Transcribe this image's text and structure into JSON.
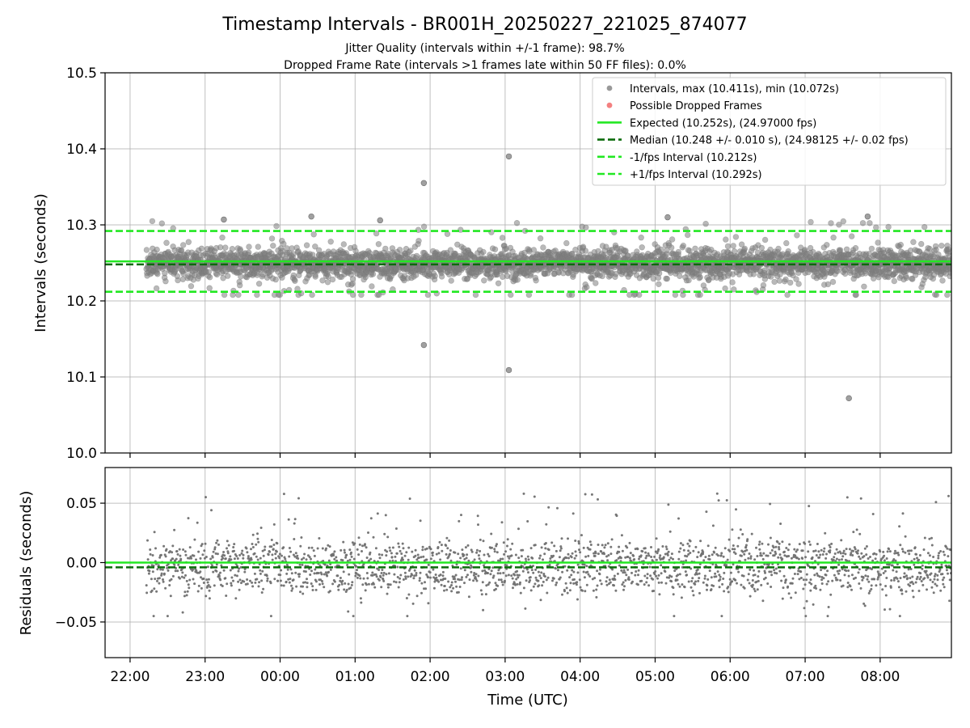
{
  "chart_data": [
    {
      "type": "scatter",
      "panel": "intervals",
      "title": "Timestamp Intervals - BR001H_20250227_221025_874077",
      "subtitle_lines": [
        "Jitter Quality (intervals within +/-1 frame): 98.7%",
        "Dropped Frame Rate (intervals >1 frames late within 50 FF files): 0.0%"
      ],
      "ylabel": "Intervals (seconds)",
      "xlabel": "",
      "xlim": [
        "2025-02-27T21:40",
        "2025-02-28T08:57"
      ],
      "ylim": [
        10.0,
        10.5
      ],
      "y_ticks": [
        10.0,
        10.1,
        10.2,
        10.3,
        10.4,
        10.5
      ],
      "y_tick_labels": [
        "10.0",
        "10.1",
        "10.2",
        "10.3",
        "10.4",
        "10.5"
      ],
      "grid": true,
      "legend_position": "top-right",
      "series": [
        {
          "name": "Intervals, max (10.411s), min (10.072s)",
          "kind": "scatter",
          "color": "#808080",
          "x_range": [
            "2025-02-27T22:13",
            "2025-02-28T08:57"
          ],
          "core_band": [
            10.225,
            10.27
          ],
          "notable_points": [
            {
              "x": "2025-02-28T01:55",
              "y": 10.355
            },
            {
              "x": "2025-02-28T03:03",
              "y": 10.39
            },
            {
              "x": "2025-02-28T01:55",
              "y": 10.142
            },
            {
              "x": "2025-02-28T03:03",
              "y": 10.109
            },
            {
              "x": "2025-02-28T07:35",
              "y": 10.072
            },
            {
              "x": "2025-02-28T07:50",
              "y": 10.311
            },
            {
              "x": "2025-02-28T00:25",
              "y": 10.311
            },
            {
              "x": "2025-02-27T23:15",
              "y": 10.307
            },
            {
              "x": "2025-02-28T01:20",
              "y": 10.306
            },
            {
              "x": "2025-02-28T05:10",
              "y": 10.31
            }
          ]
        },
        {
          "name": "Possible Dropped Frames",
          "kind": "scatter",
          "color": "#f06060",
          "points": []
        },
        {
          "name": "Expected (10.252s), (24.97000 fps)",
          "kind": "hline",
          "y": 10.252,
          "color": "#22e822",
          "style": "solid"
        },
        {
          "name": "Median (10.248 +/- 0.010 s), (24.98125 +/- 0.02 fps)",
          "kind": "hline",
          "y": 10.248,
          "color": "#0b6b0b",
          "style": "dashed"
        },
        {
          "name": "-1/fps Interval (10.212s)",
          "kind": "hline",
          "y": 10.212,
          "color": "#22e822",
          "style": "dashed"
        },
        {
          "name": "+1/fps Interval (10.292s)",
          "kind": "hline",
          "y": 10.292,
          "color": "#22e822",
          "style": "dashed"
        }
      ]
    },
    {
      "type": "scatter",
      "panel": "residuals",
      "ylabel": "Residuals (seconds)",
      "xlabel": "Time (UTC)",
      "xlim": [
        "2025-02-27T21:40",
        "2025-02-28T08:57"
      ],
      "ylim": [
        -0.08,
        0.08
      ],
      "y_ticks": [
        -0.05,
        0.0,
        0.05
      ],
      "y_tick_labels": [
        "−0.05",
        "0.00",
        "0.05"
      ],
      "x_ticks": [
        "2025-02-27T22:00",
        "2025-02-27T23:00",
        "2025-02-28T00:00",
        "2025-02-28T01:00",
        "2025-02-28T02:00",
        "2025-02-28T03:00",
        "2025-02-28T04:00",
        "2025-02-28T05:00",
        "2025-02-28T06:00",
        "2025-02-28T07:00",
        "2025-02-28T08:00"
      ],
      "x_tick_labels": [
        "22:00",
        "23:00",
        "00:00",
        "01:00",
        "02:00",
        "03:00",
        "04:00",
        "05:00",
        "06:00",
        "07:00",
        "08:00"
      ],
      "grid": true,
      "series": [
        {
          "kind": "scatter",
          "color": "#707070",
          "x_range": [
            "2025-02-27T22:13",
            "2025-02-28T08:57"
          ],
          "core_band": [
            -0.02,
            0.01
          ]
        },
        {
          "kind": "hline",
          "y": 0.0,
          "color": "#22e822",
          "style": "solid"
        },
        {
          "kind": "hline",
          "y": -0.004,
          "color": "#0b6b0b",
          "style": "dashed"
        }
      ]
    }
  ]
}
